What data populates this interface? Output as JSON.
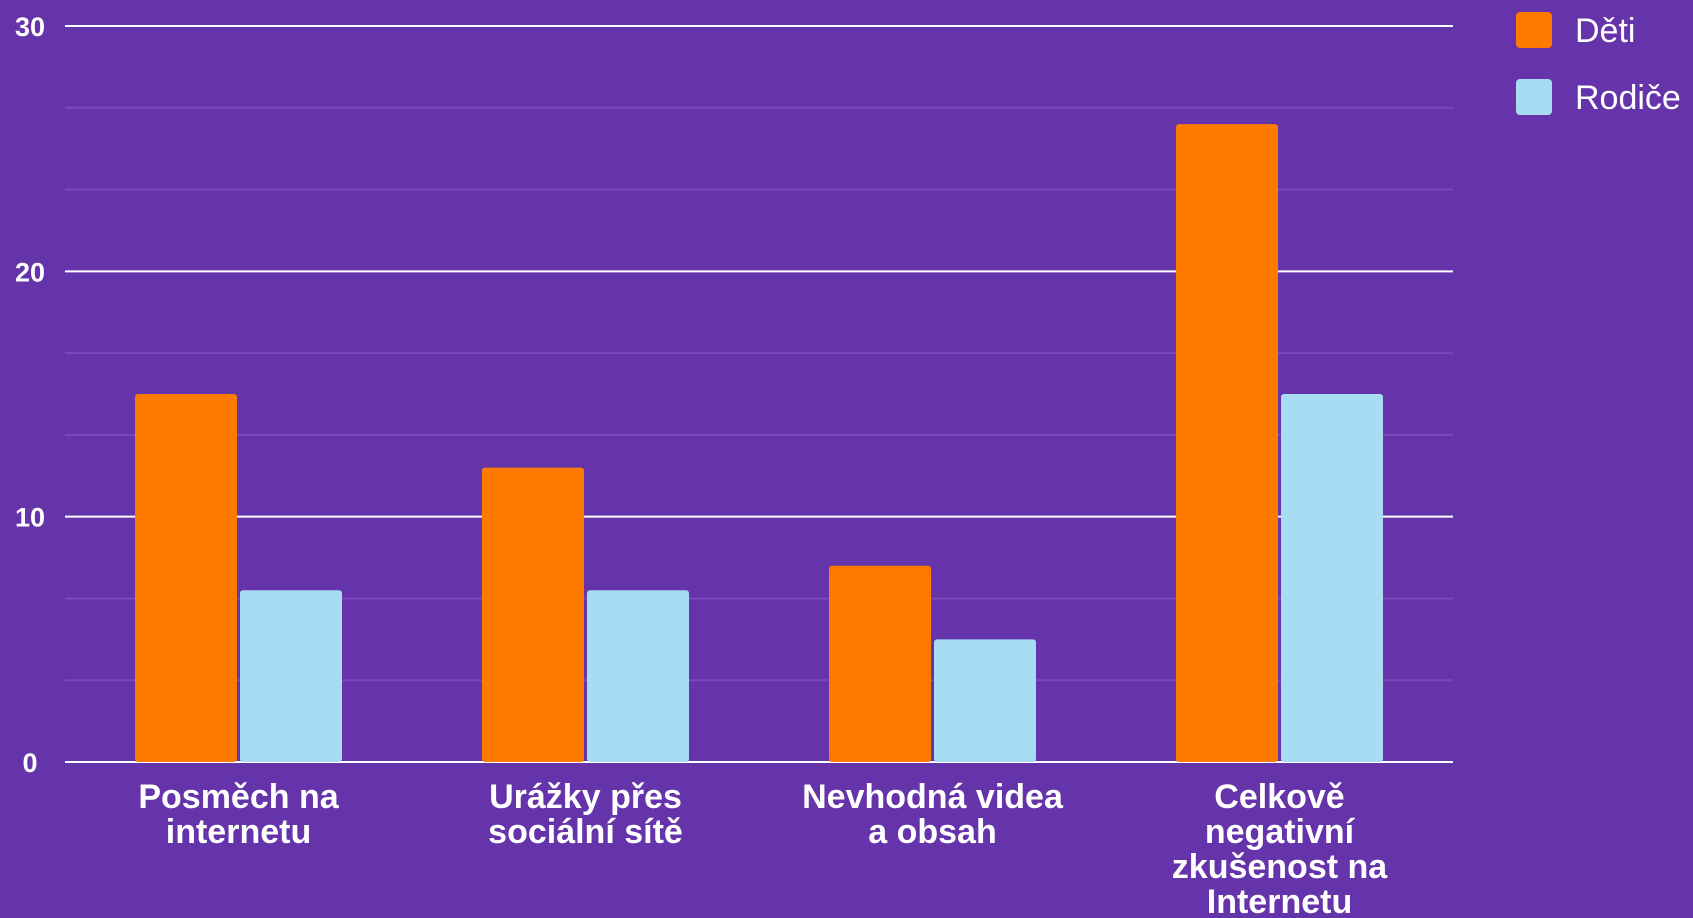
{
  "chart_data": {
    "type": "bar",
    "categories": [
      [
        "Posměch na",
        "internetu"
      ],
      [
        "Urážky přes",
        "sociální sítě"
      ],
      [
        "Nevhodná videa",
        "a obsah"
      ],
      [
        "Celkově",
        "negativní",
        "zkušenost na",
        "Internetu"
      ]
    ],
    "series": [
      {
        "name": "Děti",
        "color": "#ff7a00",
        "values": [
          15,
          12,
          8,
          26
        ]
      },
      {
        "name": "Rodiče",
        "color": "#a8dcf2",
        "values": [
          7,
          7,
          5,
          15
        ]
      }
    ],
    "ylim": [
      0,
      30
    ],
    "yticks": [
      0,
      10,
      20,
      30
    ],
    "minor_gridlines": true,
    "legend_position": "top-right",
    "title": "",
    "xlabel": "",
    "ylabel": ""
  }
}
